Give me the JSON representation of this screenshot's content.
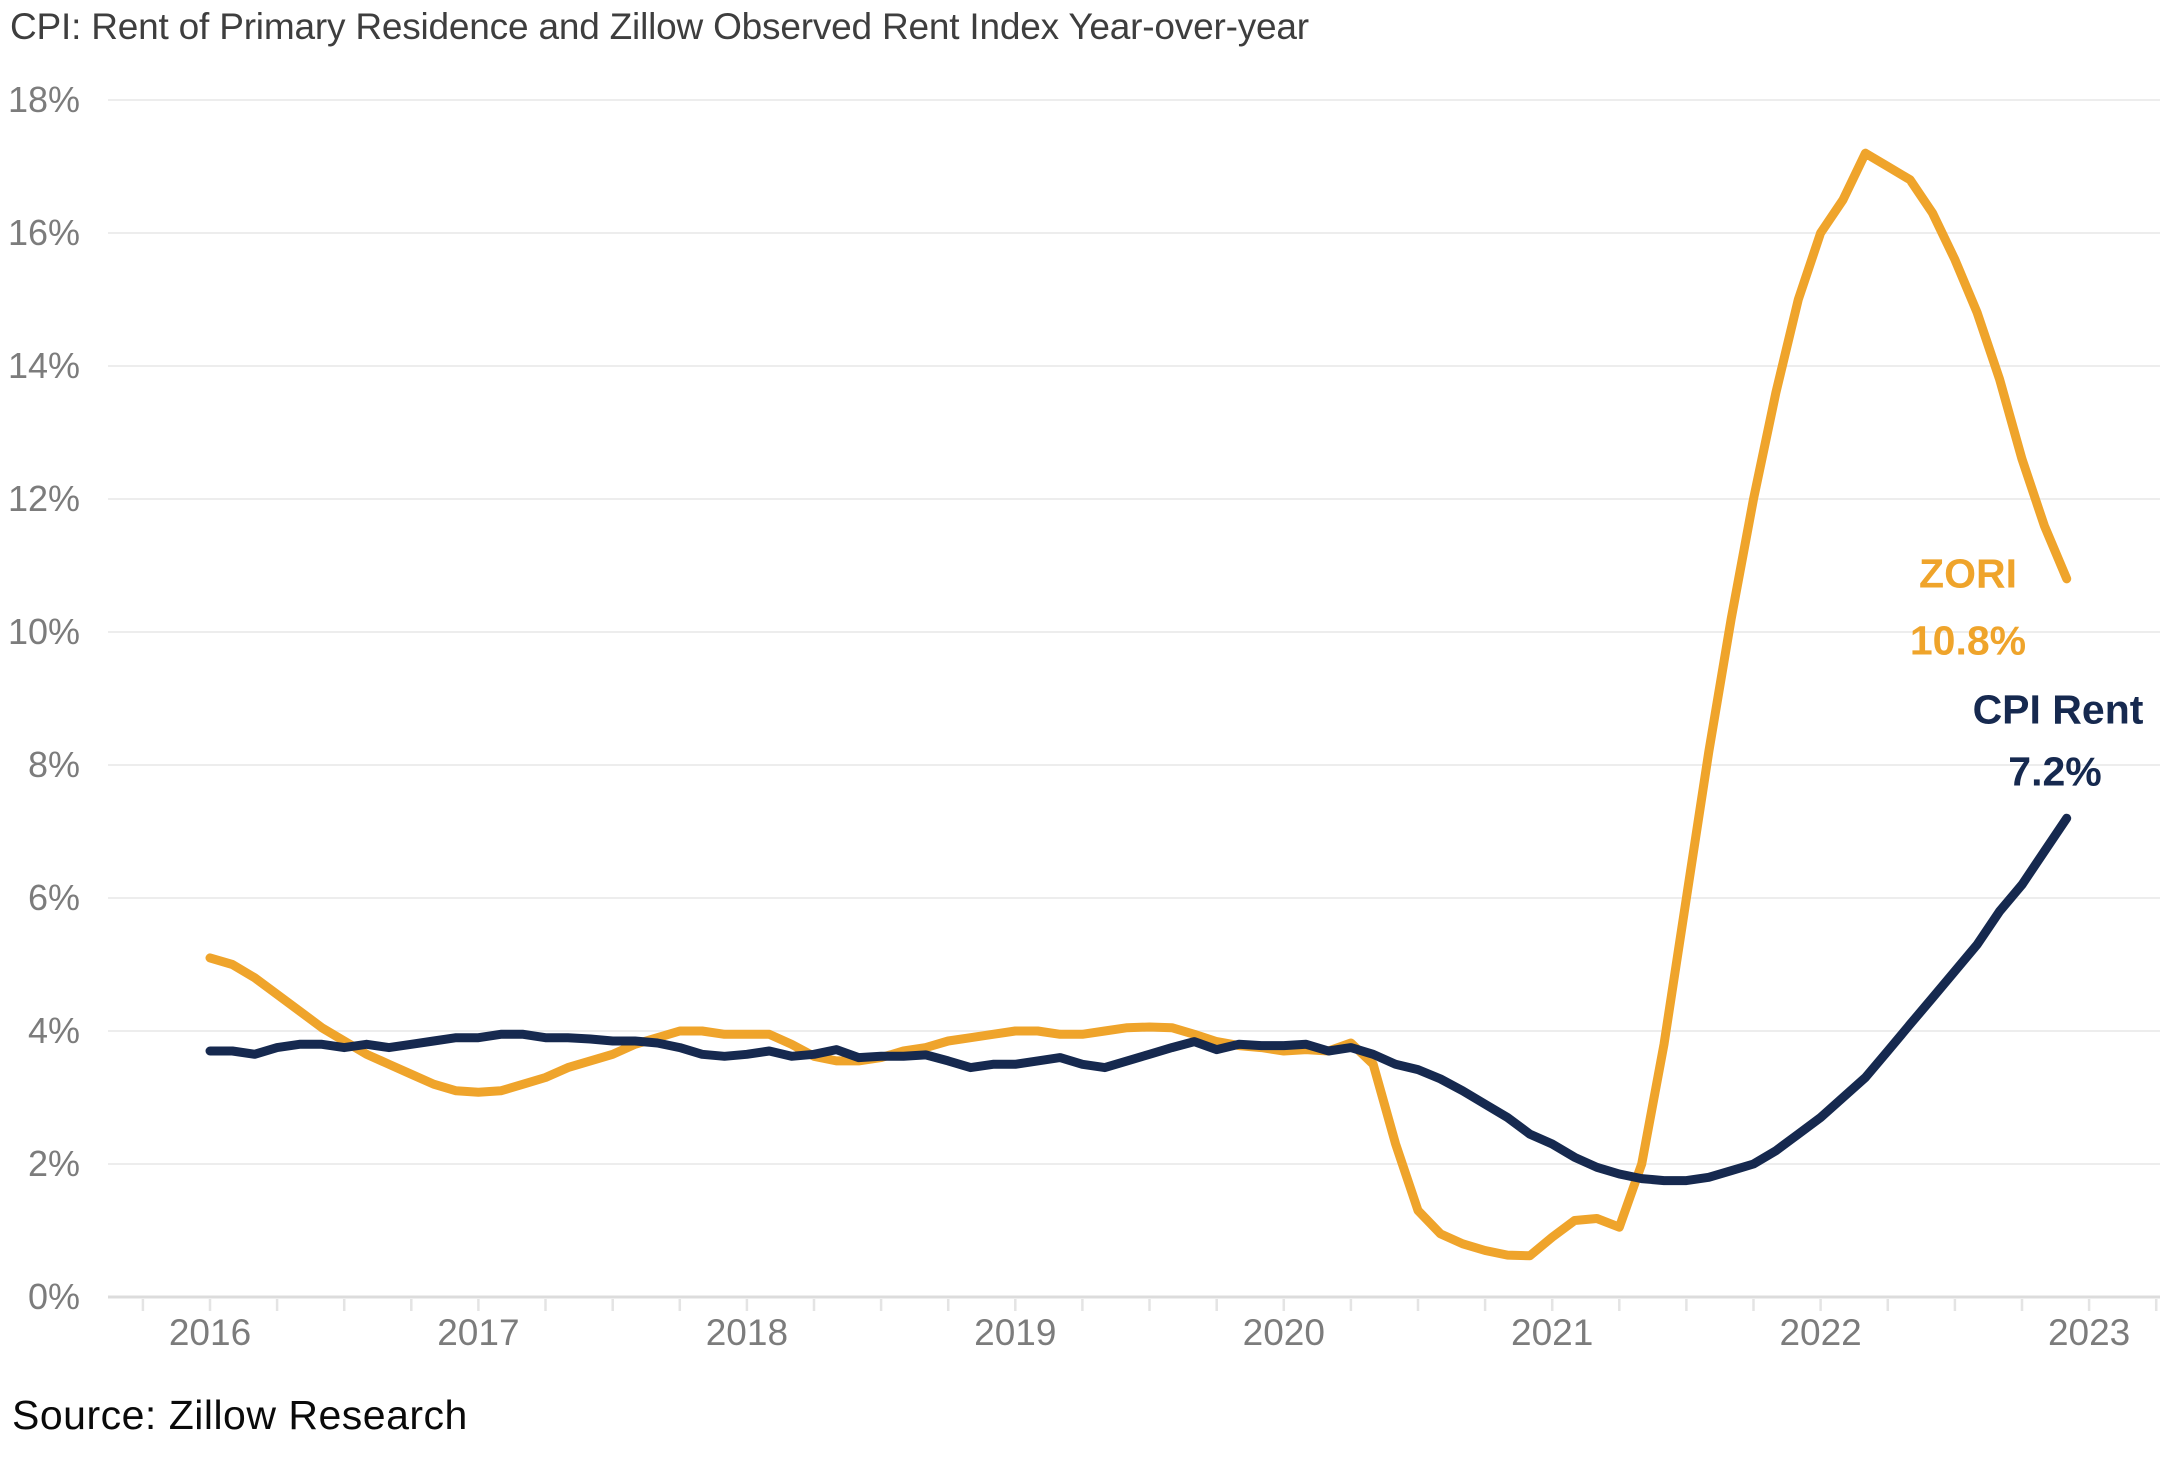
{
  "title": "CPI: Rent of Primary Residence and Zillow Observed Rent Index Year-over-year",
  "source": "Source: Zillow Research",
  "colors": {
    "zori": "#EFA42B",
    "cpi": "#16294F",
    "title_text": "#3E3E3E",
    "axis_label": "#7C7C7C",
    "gridline": "#EDEDED",
    "baseline": "#DCDCDC",
    "tick": "#E4E4E4",
    "background": "#FFFFFF"
  },
  "annotations": {
    "zori_label": "ZORI",
    "zori_value": "10.8%",
    "cpi_label": "CPI Rent",
    "cpi_value": "7.2%"
  },
  "chart_data": {
    "type": "line",
    "title": "CPI: Rent of Primary Residence and Zillow Observed Rent Index Year-over-year",
    "x_unit": "month",
    "x_range": [
      "2016-01",
      "2022-12"
    ],
    "x_labels": [
      "2016",
      "2017",
      "2018",
      "2019",
      "2020",
      "2021",
      "2022",
      "2023"
    ],
    "y_tick_labels": [
      "0%",
      "2%",
      "4%",
      "6%",
      "8%",
      "10%",
      "12%",
      "14%",
      "16%",
      "18%"
    ],
    "ylim": [
      0,
      18
    ],
    "grid": "horizontal",
    "legend_position": "inline-annotations",
    "series": [
      {
        "name": "ZORI",
        "color": "#EFA42B",
        "end_label": "ZORI 10.8%",
        "values": [
          5.1,
          5.0,
          4.8,
          4.55,
          4.3,
          4.05,
          3.85,
          3.65,
          3.5,
          3.35,
          3.2,
          3.1,
          3.08,
          3.1,
          3.2,
          3.3,
          3.45,
          3.55,
          3.65,
          3.8,
          3.9,
          4.0,
          4.0,
          3.95,
          3.95,
          3.95,
          3.8,
          3.62,
          3.55,
          3.55,
          3.6,
          3.7,
          3.75,
          3.85,
          3.9,
          3.95,
          4.0,
          4.0,
          3.95,
          3.95,
          4.0,
          4.05,
          4.06,
          4.05,
          3.95,
          3.84,
          3.78,
          3.75,
          3.7,
          3.72,
          3.7,
          3.82,
          3.5,
          2.3,
          1.3,
          0.95,
          0.8,
          0.7,
          0.63,
          0.62,
          0.9,
          1.15,
          1.18,
          1.05,
          2.0,
          3.8,
          6.0,
          8.2,
          10.2,
          12.0,
          13.6,
          15.0,
          16.0,
          16.5,
          17.2,
          17.0,
          16.8,
          16.3,
          15.6,
          14.8,
          13.8,
          12.6,
          11.6,
          10.8
        ]
      },
      {
        "name": "CPI Rent",
        "color": "#16294F",
        "end_label": "CPI Rent 7.2%",
        "values": [
          3.7,
          3.7,
          3.65,
          3.75,
          3.8,
          3.8,
          3.75,
          3.8,
          3.75,
          3.8,
          3.85,
          3.9,
          3.9,
          3.95,
          3.95,
          3.9,
          3.9,
          3.88,
          3.85,
          3.85,
          3.82,
          3.75,
          3.65,
          3.62,
          3.65,
          3.7,
          3.62,
          3.65,
          3.72,
          3.6,
          3.62,
          3.62,
          3.64,
          3.55,
          3.45,
          3.5,
          3.5,
          3.55,
          3.6,
          3.5,
          3.45,
          3.55,
          3.65,
          3.75,
          3.84,
          3.72,
          3.8,
          3.78,
          3.78,
          3.8,
          3.7,
          3.75,
          3.65,
          3.5,
          3.42,
          3.28,
          3.1,
          2.9,
          2.7,
          2.45,
          2.3,
          2.1,
          1.95,
          1.85,
          1.78,
          1.75,
          1.75,
          1.8,
          1.9,
          2.0,
          2.2,
          2.45,
          2.7,
          3.0,
          3.3,
          3.7,
          4.1,
          4.5,
          4.9,
          5.3,
          5.8,
          6.2,
          6.7,
          7.2
        ]
      }
    ]
  }
}
